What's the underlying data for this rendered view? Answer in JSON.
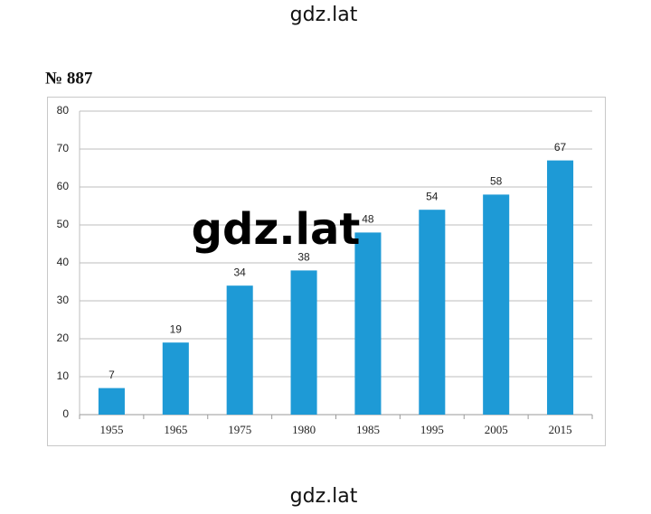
{
  "header": "gdz.lat",
  "problem_number": "№ 887",
  "watermark": "gdz.lat",
  "footer": "gdz.lat",
  "chart_data": {
    "type": "bar",
    "categories": [
      "1955",
      "1965",
      "1975",
      "1980",
      "1985",
      "1995",
      "2005",
      "2015"
    ],
    "values": [
      7,
      19,
      34,
      38,
      48,
      54,
      58,
      67
    ],
    "color": "#1e9ad6",
    "ylim": [
      0,
      80
    ],
    "yticks": [
      0,
      10,
      20,
      30,
      40,
      50,
      60,
      70,
      80
    ],
    "grid": true
  }
}
